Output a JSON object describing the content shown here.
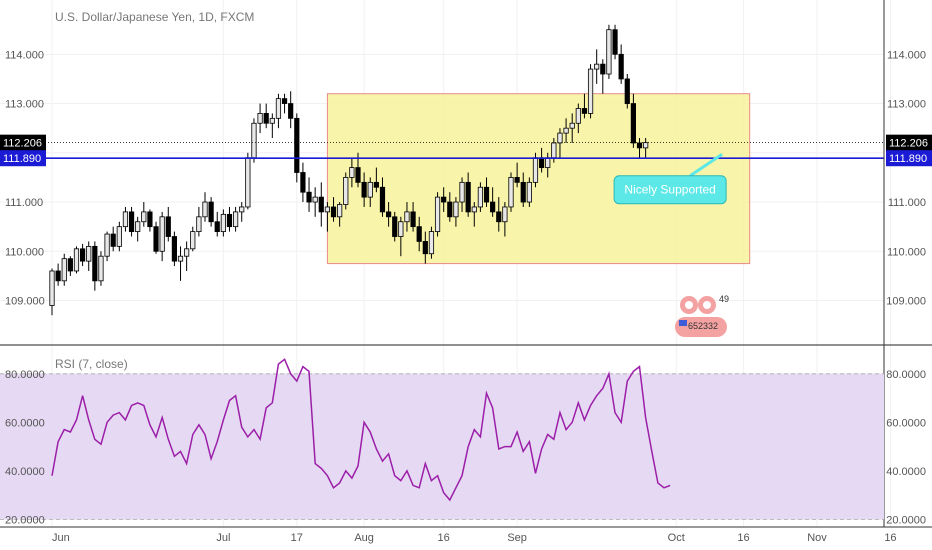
{
  "chart_data": [
    {
      "type": "candlestick",
      "title": "U.S. Dollar/Japanese Yen, 1D, FXCM",
      "ylim": [
        108.3,
        114.9
      ],
      "y_ticks": [
        "114.000",
        "113.000",
        "112.000",
        "111.000",
        "110.000",
        "109.000"
      ],
      "y_tick_values": [
        114,
        113,
        112,
        111,
        110,
        109
      ],
      "price_badges": [
        {
          "label": "112.206",
          "value": 112.206,
          "color": "#000000"
        },
        {
          "label": "111.890",
          "value": 111.89,
          "color": "#1b1bd6"
        }
      ],
      "support_line": 111.89,
      "range_box": {
        "y_top": 113.2,
        "y_bottom": 109.75,
        "x_start_index": 45,
        "x_end_index": 114,
        "fill": "#f7f29a",
        "stroke": "#e88a8a"
      },
      "annotation": {
        "text": "Nicely Supported",
        "value": 111.25,
        "center_index": 101,
        "color": "#5ce8e6"
      },
      "x_ticks": [
        "Jun",
        "Jul",
        "17",
        "Aug",
        "16",
        "Sep",
        "Oct",
        "16",
        "Nov",
        "16"
      ],
      "x_tick_indices": [
        0,
        28,
        40,
        51,
        64,
        76,
        102,
        113,
        125,
        137
      ],
      "series": [
        {
          "values": [
            [
              108.9,
              109.65,
              108.7,
              109.6
            ],
            [
              109.6,
              109.75,
              109.3,
              109.4
            ],
            [
              109.4,
              109.95,
              109.3,
              109.85
            ],
            [
              109.85,
              109.9,
              109.5,
              109.6
            ],
            [
              109.6,
              110.1,
              109.55,
              110.05
            ],
            [
              110.05,
              110.15,
              109.7,
              109.8
            ],
            [
              109.8,
              110.2,
              109.6,
              110.1
            ],
            [
              110.1,
              110.2,
              109.2,
              109.4
            ],
            [
              109.4,
              110.0,
              109.3,
              109.9
            ],
            [
              109.9,
              110.4,
              109.8,
              110.35
            ],
            [
              110.35,
              110.5,
              110.0,
              110.1
            ],
            [
              110.1,
              110.6,
              110.0,
              110.5
            ],
            [
              110.5,
              110.9,
              110.4,
              110.8
            ],
            [
              110.8,
              110.9,
              110.3,
              110.4
            ],
            [
              110.4,
              110.7,
              110.2,
              110.6
            ],
            [
              110.6,
              111.0,
              110.5,
              110.8
            ],
            [
              110.8,
              110.85,
              110.4,
              110.5
            ],
            [
              110.5,
              110.6,
              109.95,
              110.0
            ],
            [
              110.0,
              110.8,
              109.8,
              110.7
            ],
            [
              110.7,
              110.9,
              110.2,
              110.3
            ],
            [
              110.3,
              110.4,
              109.7,
              109.8
            ],
            [
              109.8,
              110.1,
              109.4,
              109.9
            ],
            [
              109.9,
              110.2,
              109.6,
              110.05
            ],
            [
              110.05,
              110.5,
              110.0,
              110.4
            ],
            [
              110.4,
              110.9,
              110.3,
              110.7
            ],
            [
              110.7,
              111.2,
              110.6,
              111.0
            ],
            [
              111.0,
              111.1,
              110.5,
              110.6
            ],
            [
              110.6,
              110.8,
              110.3,
              110.4
            ],
            [
              110.4,
              110.85,
              110.3,
              110.75
            ],
            [
              110.75,
              110.9,
              110.4,
              110.5
            ],
            [
              110.5,
              110.9,
              110.4,
              110.8
            ],
            [
              110.8,
              111.0,
              110.6,
              110.9
            ],
            [
              110.9,
              112.0,
              110.85,
              111.9
            ],
            [
              111.9,
              112.7,
              111.8,
              112.6
            ],
            [
              112.6,
              113.0,
              112.4,
              112.8
            ],
            [
              112.8,
              113.0,
              112.5,
              112.6
            ],
            [
              112.6,
              112.8,
              112.3,
              112.7
            ],
            [
              112.7,
              113.2,
              112.5,
              113.1
            ],
            [
              113.1,
              113.2,
              112.8,
              113.0
            ],
            [
              113.0,
              113.25,
              112.5,
              112.7
            ],
            [
              112.7,
              112.8,
              111.4,
              111.6
            ],
            [
              111.6,
              111.8,
              111.0,
              111.2
            ],
            [
              111.2,
              111.5,
              110.8,
              111.0
            ],
            [
              111.0,
              111.3,
              110.7,
              111.1
            ],
            [
              111.1,
              111.4,
              110.5,
              110.8
            ],
            [
              110.8,
              111.0,
              110.4,
              110.9
            ],
            [
              110.9,
              111.1,
              110.6,
              110.7
            ],
            [
              110.7,
              111.0,
              110.5,
              110.95
            ],
            [
              110.95,
              111.6,
              110.85,
              111.5
            ],
            [
              111.5,
              111.9,
              111.3,
              111.7
            ],
            [
              111.7,
              112.0,
              111.3,
              111.4
            ],
            [
              111.4,
              111.6,
              110.9,
              111.1
            ],
            [
              111.1,
              111.5,
              110.9,
              111.4
            ],
            [
              111.4,
              111.7,
              111.2,
              111.3
            ],
            [
              111.3,
              111.5,
              110.7,
              110.8
            ],
            [
              110.8,
              111.0,
              110.5,
              110.7
            ],
            [
              110.7,
              110.8,
              110.2,
              110.3
            ],
            [
              110.3,
              110.7,
              109.9,
              110.6
            ],
            [
              110.6,
              111.0,
              110.4,
              110.8
            ],
            [
              110.8,
              111.0,
              110.4,
              110.5
            ],
            [
              110.5,
              110.7,
              110.0,
              110.2
            ],
            [
              110.2,
              110.4,
              109.75,
              109.95
            ],
            [
              109.95,
              110.5,
              109.85,
              110.4
            ],
            [
              110.4,
              111.2,
              110.3,
              111.1
            ],
            [
              111.1,
              111.3,
              110.8,
              111.0
            ],
            [
              111.0,
              111.2,
              110.6,
              110.7
            ],
            [
              110.7,
              111.1,
              110.5,
              111.0
            ],
            [
              111.0,
              111.5,
              110.8,
              111.4
            ],
            [
              111.4,
              111.6,
              110.7,
              110.8
            ],
            [
              110.8,
              111.0,
              110.5,
              110.9
            ],
            [
              110.9,
              111.4,
              110.8,
              111.3
            ],
            [
              111.3,
              111.5,
              110.9,
              111.0
            ],
            [
              111.0,
              111.3,
              110.7,
              110.8
            ],
            [
              110.8,
              111.1,
              110.4,
              110.6
            ],
            [
              110.6,
              111.0,
              110.3,
              110.9
            ],
            [
              110.9,
              111.6,
              110.8,
              111.5
            ],
            [
              111.5,
              111.8,
              111.3,
              111.4
            ],
            [
              111.4,
              111.6,
              110.9,
              111.0
            ],
            [
              111.0,
              111.5,
              110.9,
              111.4
            ],
            [
              111.4,
              112.0,
              111.3,
              111.9
            ],
            [
              111.9,
              112.1,
              111.6,
              111.7
            ],
            [
              111.7,
              112.0,
              111.5,
              111.9
            ],
            [
              111.9,
              112.3,
              111.8,
              112.2
            ],
            [
              112.2,
              112.5,
              111.9,
              112.4
            ],
            [
              112.4,
              112.7,
              112.2,
              112.5
            ],
            [
              112.5,
              112.8,
              112.2,
              112.6
            ],
            [
              112.6,
              113.0,
              112.4,
              112.9
            ],
            [
              112.9,
              113.2,
              112.7,
              112.8
            ],
            [
              112.8,
              113.8,
              112.7,
              113.7
            ],
            [
              113.7,
              114.1,
              113.4,
              113.8
            ],
            [
              113.8,
              113.9,
              113.2,
              113.6
            ],
            [
              113.6,
              114.6,
              113.5,
              114.5
            ],
            [
              114.5,
              114.6,
              113.9,
              114.0
            ],
            [
              114.0,
              114.2,
              113.4,
              113.5
            ],
            [
              113.5,
              113.6,
              112.9,
              113.0
            ],
            [
              113.0,
              113.2,
              112.1,
              112.2
            ],
            [
              112.2,
              112.3,
              111.9,
              112.1
            ],
            [
              112.1,
              112.3,
              111.9,
              112.206
            ]
          ]
        }
      ]
    },
    {
      "type": "line",
      "title": "RSI (7, close)",
      "ylim": [
        18.5,
        89
      ],
      "y_ticks": [
        "80.0000",
        "60.0000",
        "40.0000",
        "20.0000"
      ],
      "y_tick_values": [
        80,
        60,
        40,
        20
      ],
      "band": [
        20,
        80
      ],
      "line_color": "#9b1fa8",
      "band_color": "#e6d9f3",
      "series": [
        {
          "values": [
            38,
            52,
            57,
            56,
            61,
            71,
            61,
            53,
            51,
            60,
            63,
            64,
            61,
            67,
            68,
            67,
            59,
            54,
            62,
            53,
            46,
            48,
            43,
            55,
            59,
            55,
            45,
            52,
            61,
            69,
            71,
            58,
            54,
            57,
            53,
            66,
            68,
            84,
            86,
            80,
            77,
            83,
            81,
            43,
            41,
            38,
            33,
            35,
            40,
            37,
            42,
            60,
            56,
            49,
            44,
            47,
            38,
            36,
            40,
            34,
            33,
            43,
            36,
            38,
            31,
            28,
            33,
            38,
            50,
            57,
            54,
            72,
            66,
            49,
            50,
            50,
            56,
            48,
            52,
            39,
            49,
            55,
            53,
            64,
            57,
            60,
            68,
            61,
            67,
            71,
            74,
            80,
            64,
            60,
            77,
            81,
            83,
            62,
            48,
            35,
            33,
            34
          ]
        }
      ]
    }
  ],
  "logo": {
    "digits": "652332",
    "superscript": "49"
  },
  "colors": {
    "bull": "#e8e8e8",
    "bear": "#000000",
    "grid": "#f1f1f1",
    "support": "#1b1bd6"
  }
}
